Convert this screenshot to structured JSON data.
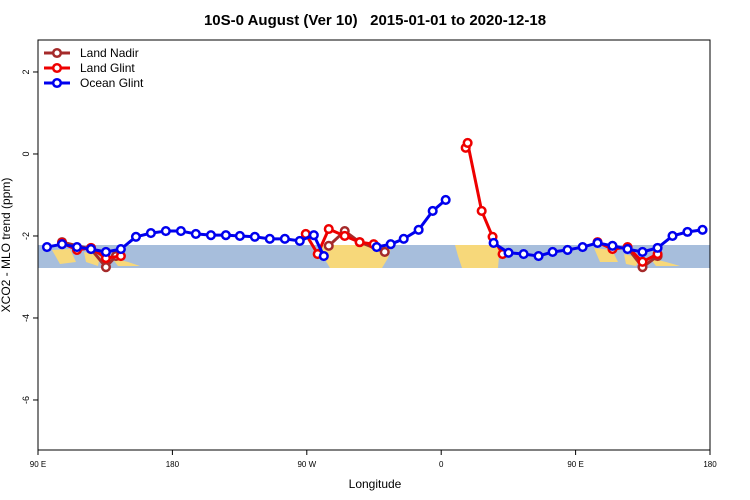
{
  "chart_data": {
    "type": "line",
    "title": "10S-0 August (Ver 10)   2015-01-01 to 2020-12-18",
    "x_label": "Longitude",
    "y_label": "XCO2 - MLO trend (ppm)",
    "xlim": [
      90,
      540
    ],
    "ylim": [
      -7.22,
      2.78
    ],
    "xticks": [
      {
        "value": 90,
        "label": "90 E"
      },
      180,
      {
        "value": 270,
        "label": "90 W"
      },
      {
        "value": 360,
        "label": "0"
      },
      {
        "value": 450,
        "label": "90 E"
      },
      {
        "value": 540,
        "label": "180"
      }
    ],
    "yticks": [
      2,
      0,
      -2,
      -4,
      -6
    ],
    "legend": "top-left",
    "series": [
      {
        "name": "Land Nadir",
        "color": "#a52a2a",
        "x": [
          106.1,
          125.5,
          135.5,
          142.2,
          null,
          284.7,
          295.4,
          305.4,
          322.2,
          null,
          484.8,
          494.8,
          504.9
        ],
        "values": [
          -2.15,
          -2.32,
          -2.76,
          -2.49,
          null,
          -2.24,
          -1.88,
          -2.15,
          -2.39,
          null,
          -2.29,
          -2.76,
          -2.49
        ]
      },
      {
        "name": "Land Glint",
        "color": "#ee0000",
        "x": [
          106.1,
          116.1,
          125.5,
          135.5,
          145.5,
          null,
          269.3,
          277.3,
          284.7,
          295.4,
          305.4,
          314.8,
          null,
          376.4,
          377.7,
          387.1,
          394.4,
          401.1,
          null,
          464.7,
          474.7,
          484.8,
          494.8,
          504.9
        ],
        "values": [
          -2.17,
          -2.34,
          -2.29,
          -2.54,
          -2.49,
          null,
          -1.95,
          -2.44,
          -1.83,
          -2.0,
          -2.15,
          -2.2,
          null,
          0.15,
          0.27,
          -1.39,
          -2.02,
          -2.44,
          null,
          -2.15,
          -2.32,
          -2.27,
          -2.63,
          -2.44
        ]
      },
      {
        "name": "Ocean Glint",
        "color": "#0000ee",
        "x": [
          96.0,
          106.1,
          116.1,
          125.5,
          135.5,
          145.5,
          155.6,
          165.6,
          175.6,
          185.7,
          195.7,
          205.8,
          215.8,
          225.2,
          235.2,
          245.2,
          255.3,
          265.3,
          274.7,
          281.4,
          null,
          316.8,
          326.2,
          334.9,
          344.9,
          354.3,
          363.0,
          null,
          395.1,
          405.1,
          415.2,
          425.2,
          434.6,
          444.6,
          454.7,
          464.7,
          474.7,
          484.8,
          494.8,
          504.9,
          514.9,
          524.9,
          535.0
        ],
        "values": [
          -2.27,
          -2.2,
          -2.27,
          -2.32,
          -2.39,
          -2.32,
          -2.02,
          -1.93,
          -1.88,
          -1.88,
          -1.95,
          -1.98,
          -1.98,
          -2.0,
          -2.02,
          -2.07,
          -2.07,
          -2.12,
          -1.98,
          -2.49,
          null,
          -2.27,
          -2.2,
          -2.07,
          -1.85,
          -1.39,
          -1.12,
          null,
          -2.17,
          -2.41,
          -2.44,
          -2.49,
          -2.39,
          -2.34,
          -2.27,
          -2.17,
          -2.24,
          -2.32,
          -2.39,
          -2.29,
          -2.0,
          -1.9,
          -1.85
        ]
      }
    ]
  }
}
